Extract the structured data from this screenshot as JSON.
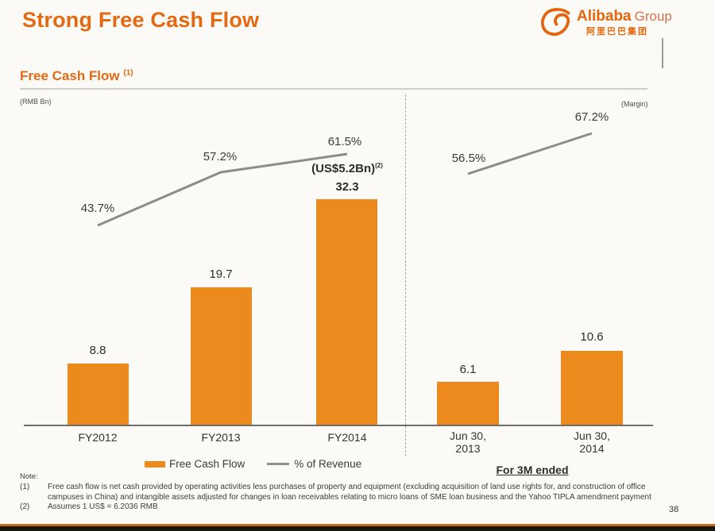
{
  "slide": {
    "title": "Strong Free Cash Flow",
    "page_number": "38"
  },
  "logo": {
    "brand": "Alibaba",
    "suffix": "Group",
    "chinese": "阿里巴巴集团"
  },
  "section": {
    "heading": "Free Cash Flow",
    "heading_footnote": "(1)",
    "left_unit": "(RMB Bn)",
    "right_unit": "(Margin)"
  },
  "chart_data": {
    "type": "bar",
    "title": "Free Cash Flow",
    "ylabel_left": "RMB Bn",
    "ylabel_right": "Margin",
    "legend_position": "bottom",
    "bar_color": "#ED8A1E",
    "line_color": "#8C8C8C",
    "groups": [
      {
        "name": "fiscal-years",
        "categories": [
          "FY2012",
          "FY2013",
          "FY2014"
        ],
        "bars": [
          8.8,
          19.7,
          32.3
        ],
        "pct_of_revenue": [
          43.7,
          57.2,
          61.5
        ]
      },
      {
        "name": "for-3m-ended",
        "categories": [
          "Jun 30, 2013",
          "Jun 30, 2014"
        ],
        "bars": [
          6.1,
          10.6
        ],
        "pct_of_revenue": [
          56.5,
          67.2
        ]
      }
    ],
    "annotation_fy2014": {
      "text": "(US$5.2Bn)",
      "footnote": "(2)"
    }
  },
  "display": {
    "values": [
      "8.8",
      "19.7",
      "32.3",
      "6.1",
      "10.6"
    ],
    "pcts": [
      "43.7%",
      "57.2%",
      "61.5%",
      "56.5%",
      "67.2%"
    ],
    "x_left": [
      "FY2012",
      "FY2013",
      "FY2014"
    ],
    "x_right": [
      [
        "Jun 30,",
        "2013"
      ],
      [
        "Jun 30,",
        "2014"
      ]
    ],
    "annotation": "(US$5.2Bn)",
    "annotation_sup": "(2)",
    "group_right_label": "For 3M ended"
  },
  "legend": {
    "bar": "Free Cash Flow",
    "line": "% of Revenue"
  },
  "notes": {
    "heading": "Note:",
    "items": [
      {
        "num": "(1)",
        "text": "Free cash flow is net cash provided by operating activities less purchases of property and equipment (excluding acquisition of land use rights for, and construction of office campuses in China) and intangible assets  adjusted for changes in loan receivables relating to micro loans of SME loan business and the Yahoo TIPLA amendment payment"
      },
      {
        "num": "(2)",
        "text": "Assumes 1 US$ = 6.2036 RMB"
      }
    ]
  }
}
